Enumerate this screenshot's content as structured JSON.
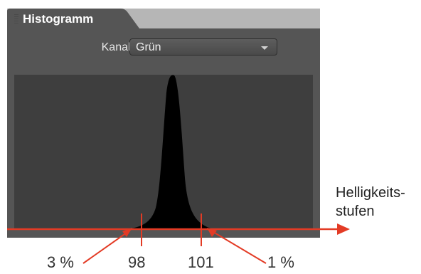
{
  "panel": {
    "tab_title": "Histogramm",
    "channel_label": "Kanal:",
    "channel_value": "Grün"
  },
  "annotations": {
    "axis_label_line1": "Helligkeits-",
    "axis_label_line2": "stufen",
    "left_percent": "3 %",
    "left_value": "98",
    "right_value": "101",
    "right_percent": "1 %"
  },
  "colors": {
    "annotation_red": "#e33b25",
    "panel_bg": "#555555",
    "histogram_fill": "#000000"
  },
  "icons": [
    "panel-grip-icon",
    "dropdown-chevron-icon",
    "arrow-right-icon"
  ]
}
